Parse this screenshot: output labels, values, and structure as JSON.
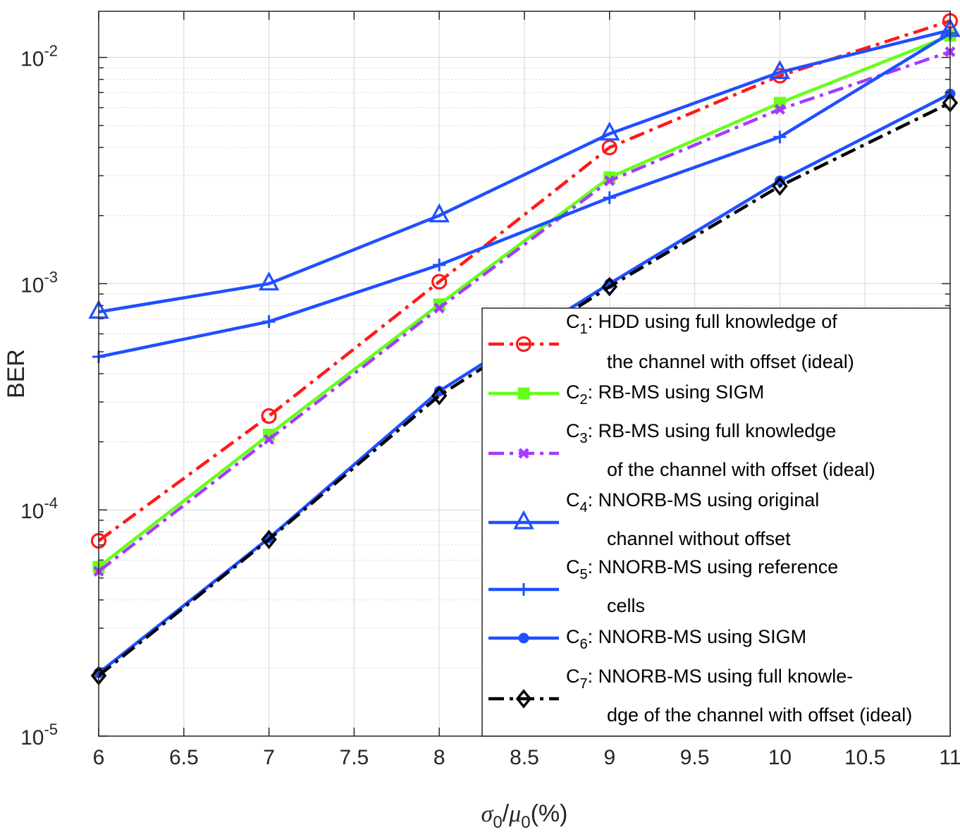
{
  "chart_data": {
    "type": "line",
    "xlabel": "σ0/μ0(%)",
    "xlabel_parts": {
      "sigma": "σ",
      "sub0": "0",
      "slash": "/",
      "mu": "μ",
      "sub1": "0",
      "unit": "(%)"
    },
    "ylabel": "BER",
    "yscale": "log",
    "xlim": [
      6,
      11
    ],
    "ylim": [
      1e-05,
      0.016
    ],
    "grid": true,
    "legend_position": "bottom-right",
    "x": [
      6,
      7,
      8,
      9,
      10,
      11
    ],
    "xtick_labels": [
      "6",
      "6.5",
      "7",
      "7.5",
      "8",
      "8.5",
      "9",
      "9.5",
      "10",
      "10.5",
      "11"
    ],
    "xticks": [
      6,
      6.5,
      7,
      7.5,
      8,
      8.5,
      9,
      9.5,
      10,
      10.5,
      11
    ],
    "yticks": [
      {
        "value": 1e-05,
        "base": "10",
        "exp": "-5"
      },
      {
        "value": 0.0001,
        "base": "10",
        "exp": "-4"
      },
      {
        "value": 0.001,
        "base": "10",
        "exp": "-3"
      },
      {
        "value": 0.01,
        "base": "10",
        "exp": "-2"
      }
    ],
    "series": [
      {
        "id": "c1",
        "sub": "1",
        "color": "#ff1a1a",
        "style": "dashdot",
        "marker": "circle",
        "values": [
          7.3e-05,
          0.00026,
          0.00102,
          0.004,
          0.0083,
          0.0145
        ],
        "legend": [
          "HDD using full knowledge of",
          "the channel with offset (ideal)"
        ]
      },
      {
        "id": "c2",
        "sub": "2",
        "color": "#66ff1a",
        "style": "solid",
        "marker": "square",
        "values": [
          5.6e-05,
          0.000215,
          0.00081,
          0.00295,
          0.0063,
          0.0125
        ],
        "legend": [
          "RB-MS using SIGM"
        ]
      },
      {
        "id": "c3",
        "sub": "3",
        "color": "#a63aff",
        "style": "dashdot",
        "marker": "x",
        "values": [
          5.35e-05,
          0.000205,
          0.00078,
          0.00285,
          0.0059,
          0.0106
        ],
        "legend": [
          "RB-MS using full knowledge",
          "of the channel with offset (ideal)"
        ]
      },
      {
        "id": "c4",
        "sub": "4",
        "color": "#1f4fff",
        "style": "solid",
        "marker": "triangle",
        "values": [
          0.00075,
          0.001,
          0.002,
          0.0046,
          0.0086,
          0.0132
        ],
        "legend": [
          "NNORB-MS using original",
          "channel without offset"
        ]
      },
      {
        "id": "c5",
        "sub": "5",
        "color": "#1f4fff",
        "style": "solid",
        "marker": "plus",
        "values": [
          0.000475,
          0.00068,
          0.00121,
          0.0024,
          0.00445,
          0.0128
        ],
        "legend": [
          "NNORB-MS using reference",
          "cells"
        ]
      },
      {
        "id": "c6",
        "sub": "6",
        "color": "#1f4fff",
        "style": "solid",
        "marker": "dot",
        "values": [
          1.9e-05,
          7.5e-05,
          0.000335,
          0.001,
          0.00285,
          0.0069
        ],
        "legend": [
          "NNORB-MS using SIGM"
        ]
      },
      {
        "id": "c7",
        "sub": "7",
        "color": "#000000",
        "style": "dashdot",
        "marker": "diamond",
        "values": [
          1.85e-05,
          7.4e-05,
          0.00032,
          0.00097,
          0.0027,
          0.0063
        ],
        "legend": [
          "NNORB-MS using full knowle-",
          "dge of the channel with offset (ideal)"
        ]
      }
    ],
    "legend_prefix": "C",
    "legend_separator": ":"
  }
}
